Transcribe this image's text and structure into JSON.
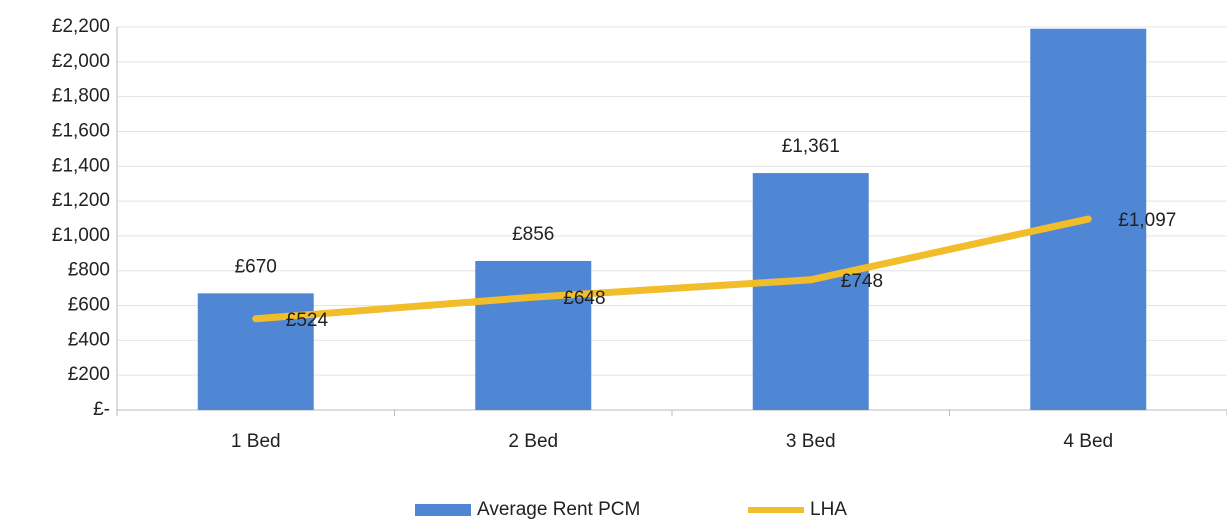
{
  "chart_data": {
    "type": "bar",
    "categories": [
      "1 Bed",
      "2 Bed",
      "3 Bed",
      "4 Bed"
    ],
    "series": [
      {
        "name": "Average Rent PCM",
        "type": "bar",
        "color": "#5087d4",
        "values": [
          670,
          856,
          1361,
          2190
        ],
        "value_labels": [
          "£670",
          "£856",
          "£1,361",
          null
        ]
      },
      {
        "name": "LHA",
        "type": "line",
        "color": "#f2bd2a",
        "values": [
          524,
          648,
          748,
          1097
        ],
        "value_labels": [
          "£524",
          "£648",
          "£748",
          "£1,097"
        ]
      }
    ],
    "ylim": [
      0,
      2200
    ],
    "yticks": [
      {
        "value": 0,
        "label": "£-"
      },
      {
        "value": 200,
        "label": "£200"
      },
      {
        "value": 400,
        "label": "£400"
      },
      {
        "value": 600,
        "label": "£600"
      },
      {
        "value": 800,
        "label": "£800"
      },
      {
        "value": 1000,
        "label": "£1,000"
      },
      {
        "value": 1200,
        "label": "£1,200"
      },
      {
        "value": 1400,
        "label": "£1,400"
      },
      {
        "value": 1600,
        "label": "£1,600"
      },
      {
        "value": 1800,
        "label": "£1,800"
      },
      {
        "value": 2000,
        "label": "£2,000"
      },
      {
        "value": 2200,
        "label": "£2,200"
      }
    ],
    "grid": true,
    "legend": "bottom"
  }
}
